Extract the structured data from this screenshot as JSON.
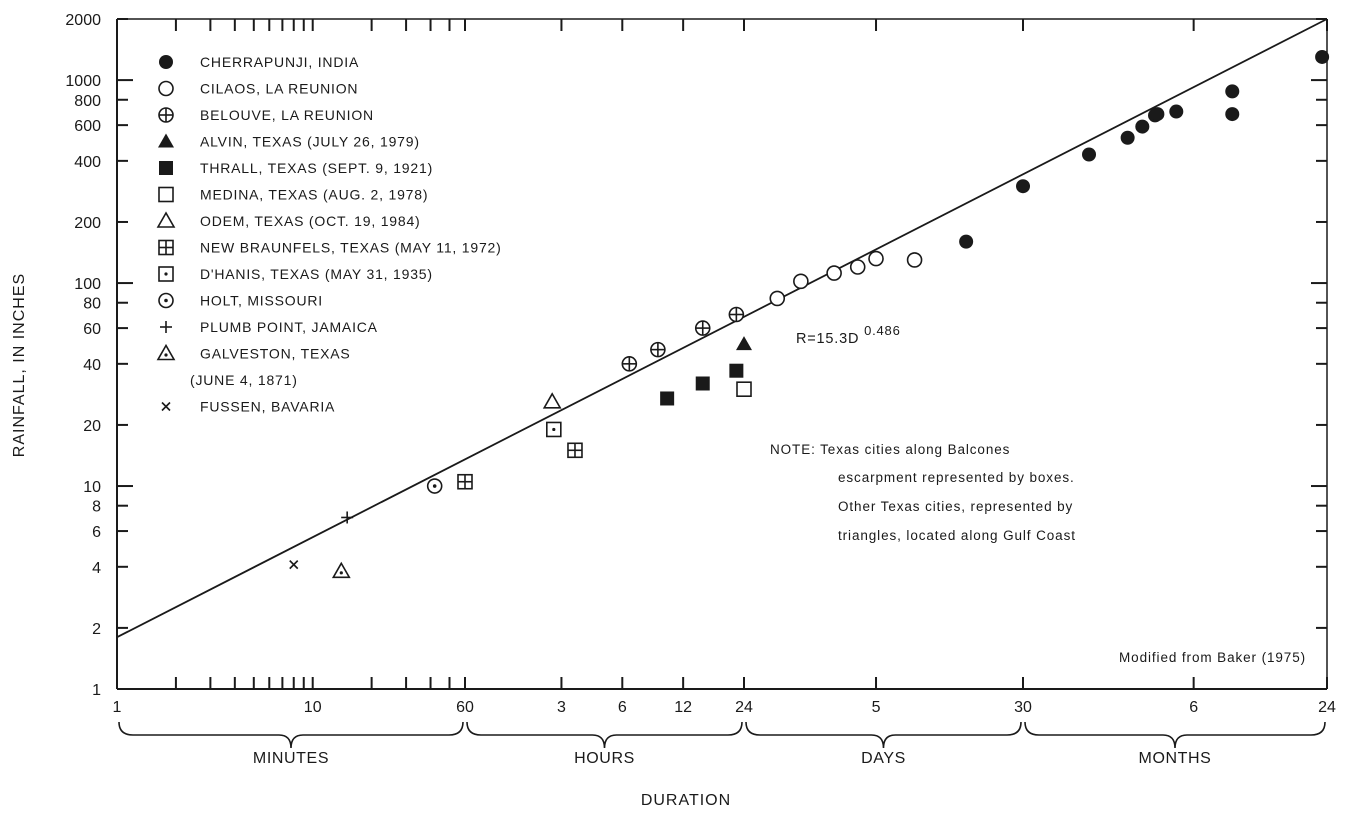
{
  "chart_data": {
    "type": "scatter",
    "y_scale": "log",
    "ylabel": "RAINFALL, IN INCHES",
    "xlabel": "DURATION",
    "ylim": [
      1,
      2000
    ],
    "y_ticks": [
      1,
      2,
      4,
      6,
      8,
      10,
      20,
      40,
      60,
      80,
      100,
      200,
      400,
      600,
      800,
      1000,
      2000
    ],
    "x_tick_labels": [
      "1",
      "10",
      "60",
      "3",
      "6",
      "12",
      "24",
      "5",
      "30",
      "6",
      "24"
    ],
    "x_periods": [
      "MINUTES",
      "HOURS",
      "DAYS",
      "MONTHS"
    ],
    "equation_base": "R=15.3D",
    "equation_exponent": "0.486",
    "note_lines": [
      "NOTE: Texas cities along Balcones",
      "escarpment represented by boxes.",
      "Other Texas cities, represented by",
      "triangles, located along Gulf Coast"
    ],
    "source": "Modified from Baker (1975)",
    "trend_line": {
      "y_at_1_minute": 1.8,
      "y_at_24_months": 2000
    },
    "series": [
      {
        "name": "CHERRAPUNJI, INDIA",
        "marker": "filled-circle",
        "x": [
          "15 days",
          "1 month",
          "2 months",
          "3 months",
          "3.5 months",
          "4 months",
          "4.1 months",
          "5 months",
          "9 months",
          "9 months",
          "1.9 years"
        ],
        "y": [
          160,
          300,
          430,
          520,
          590,
          670,
          680,
          700,
          680,
          880,
          1300
        ]
      },
      {
        "name": "CILAOS, LA REUNION",
        "marker": "open-circle",
        "x": [
          "1.5 days",
          "2 days",
          "3 days",
          "4 days",
          "5 days",
          "8 days"
        ],
        "y": [
          84,
          102,
          112,
          120,
          132,
          130
        ]
      },
      {
        "name": "BELOUVE, LA REUNION",
        "marker": "circle-plus",
        "x": [
          "6.5 hours",
          "9 hours",
          "15 hours",
          "22 hours"
        ],
        "y": [
          40,
          47,
          60,
          70
        ]
      },
      {
        "name": "ALVIN, TEXAS (JULY 26, 1979)",
        "marker": "filled-triangle",
        "x": [
          "1 day"
        ],
        "y": [
          50
        ]
      },
      {
        "name": "THRALL, TEXAS (SEPT. 9, 1921)",
        "marker": "filled-square",
        "x": [
          "10 hours",
          "15 hours",
          "22 hours"
        ],
        "y": [
          27,
          32,
          37
        ]
      },
      {
        "name": "MEDINA, TEXAS (AUG. 2, 1978)",
        "marker": "open-square",
        "x": [
          "1 day"
        ],
        "y": [
          30
        ]
      },
      {
        "name": "ODEM, TEXAS (OCT. 19, 1984)",
        "marker": "open-triangle",
        "x": [
          "2.7 hours"
        ],
        "y": [
          26
        ]
      },
      {
        "name": "NEW BRAUNFELS, TEXAS (MAY 11, 1972)",
        "marker": "square-plus",
        "x": [
          "1 hour",
          "3.5 hours"
        ],
        "y": [
          10.5,
          15
        ]
      },
      {
        "name": "D'HANIS, TEXAS (MAY 31, 1935)",
        "marker": "square-dot",
        "x": [
          "2.75 hours"
        ],
        "y": [
          19
        ]
      },
      {
        "name": "HOLT, MISSOURI",
        "marker": "circle-dot",
        "x": [
          "42 minutes"
        ],
        "y": [
          10
        ]
      },
      {
        "name": "PLUMB POINT, JAMAICA",
        "marker": "plus",
        "x": [
          "15 minutes"
        ],
        "y": [
          7
        ]
      },
      {
        "name": "GALVESTON, TEXAS",
        "name_line2": "(JUNE 4, 1871)",
        "marker": "triangle-dot",
        "x": [
          "14 minutes"
        ],
        "y": [
          3.8
        ]
      },
      {
        "name": "FUSSEN, BAVARIA",
        "marker": "x",
        "x": [
          "8 minutes"
        ],
        "y": [
          4.1
        ]
      }
    ]
  }
}
